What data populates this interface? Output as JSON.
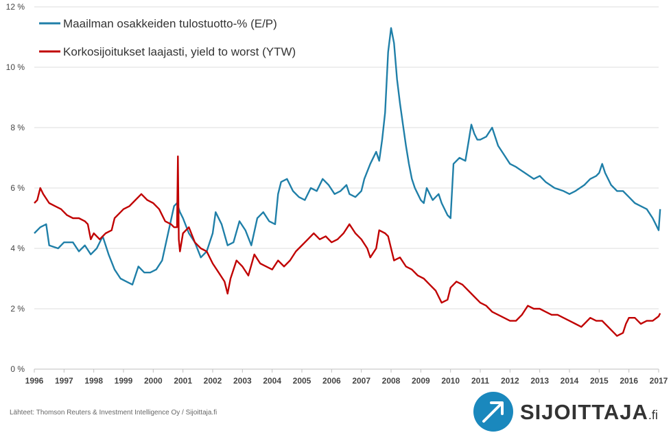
{
  "chart_data": {
    "type": "line",
    "y_ticks": [
      "0 %",
      "2 %",
      "4 %",
      "6 %",
      "8 %",
      "10 %",
      "12 %"
    ],
    "ylim": [
      0,
      12
    ],
    "x_ticks": [
      "1996",
      "1997",
      "1998",
      "1999",
      "2000",
      "2001",
      "2002",
      "2003",
      "2004",
      "2005",
      "2006",
      "2007",
      "2008",
      "2009",
      "2010",
      "2011",
      "2012",
      "2013",
      "2014",
      "2015",
      "2016",
      "2017"
    ],
    "xlim": [
      1996,
      2017
    ],
    "grid": "horizontal",
    "legend_position": "top-left",
    "series": [
      {
        "name": "Maailman osakkeiden tulostuotto-% (E/P)",
        "color": "#1f7fa8",
        "points": [
          [
            1996.0,
            4.5
          ],
          [
            1996.2,
            4.7
          ],
          [
            1996.4,
            4.8
          ],
          [
            1996.5,
            4.1
          ],
          [
            1996.8,
            4.0
          ],
          [
            1997.0,
            4.2
          ],
          [
            1997.3,
            4.2
          ],
          [
            1997.5,
            3.9
          ],
          [
            1997.7,
            4.1
          ],
          [
            1997.9,
            3.8
          ],
          [
            1998.1,
            4.0
          ],
          [
            1998.3,
            4.4
          ],
          [
            1998.5,
            3.8
          ],
          [
            1998.7,
            3.3
          ],
          [
            1998.9,
            3.0
          ],
          [
            1999.1,
            2.9
          ],
          [
            1999.3,
            2.8
          ],
          [
            1999.5,
            3.4
          ],
          [
            1999.7,
            3.2
          ],
          [
            1999.9,
            3.2
          ],
          [
            2000.1,
            3.3
          ],
          [
            2000.3,
            3.6
          ],
          [
            2000.5,
            4.5
          ],
          [
            2000.7,
            5.4
          ],
          [
            2000.8,
            5.5
          ],
          [
            2000.9,
            5.2
          ],
          [
            2001.0,
            5.0
          ],
          [
            2001.2,
            4.5
          ],
          [
            2001.4,
            4.2
          ],
          [
            2001.6,
            3.7
          ],
          [
            2001.8,
            3.9
          ],
          [
            2002.0,
            4.5
          ],
          [
            2002.1,
            5.2
          ],
          [
            2002.3,
            4.8
          ],
          [
            2002.5,
            4.1
          ],
          [
            2002.7,
            4.2
          ],
          [
            2002.9,
            4.9
          ],
          [
            2003.1,
            4.6
          ],
          [
            2003.3,
            4.1
          ],
          [
            2003.5,
            5.0
          ],
          [
            2003.7,
            5.2
          ],
          [
            2003.9,
            4.9
          ],
          [
            2004.1,
            4.8
          ],
          [
            2004.2,
            5.8
          ],
          [
            2004.3,
            6.2
          ],
          [
            2004.5,
            6.3
          ],
          [
            2004.7,
            5.9
          ],
          [
            2004.9,
            5.7
          ],
          [
            2005.1,
            5.6
          ],
          [
            2005.3,
            6.0
          ],
          [
            2005.5,
            5.9
          ],
          [
            2005.7,
            6.3
          ],
          [
            2005.9,
            6.1
          ],
          [
            2006.1,
            5.8
          ],
          [
            2006.3,
            5.9
          ],
          [
            2006.5,
            6.1
          ],
          [
            2006.6,
            5.8
          ],
          [
            2006.8,
            5.7
          ],
          [
            2007.0,
            5.9
          ],
          [
            2007.1,
            6.3
          ],
          [
            2007.3,
            6.8
          ],
          [
            2007.5,
            7.2
          ],
          [
            2007.6,
            6.9
          ],
          [
            2007.7,
            7.6
          ],
          [
            2007.8,
            8.5
          ],
          [
            2007.9,
            10.5
          ],
          [
            2008.0,
            11.3
          ],
          [
            2008.1,
            10.8
          ],
          [
            2008.2,
            9.6
          ],
          [
            2008.3,
            8.8
          ],
          [
            2008.4,
            8.1
          ],
          [
            2008.5,
            7.4
          ],
          [
            2008.6,
            6.8
          ],
          [
            2008.7,
            6.3
          ],
          [
            2008.8,
            6.0
          ],
          [
            2008.9,
            5.8
          ],
          [
            2009.0,
            5.6
          ],
          [
            2009.1,
            5.5
          ],
          [
            2009.2,
            6.0
          ],
          [
            2009.3,
            5.8
          ],
          [
            2009.4,
            5.6
          ],
          [
            2009.5,
            5.7
          ],
          [
            2009.6,
            5.8
          ],
          [
            2009.7,
            5.5
          ],
          [
            2009.9,
            5.1
          ],
          [
            2010.0,
            5.0
          ],
          [
            2010.1,
            6.8
          ],
          [
            2010.3,
            7.0
          ],
          [
            2010.5,
            6.9
          ],
          [
            2010.6,
            7.5
          ],
          [
            2010.7,
            8.1
          ],
          [
            2010.8,
            7.8
          ],
          [
            2010.9,
            7.6
          ],
          [
            2011.0,
            7.6
          ],
          [
            2011.2,
            7.7
          ],
          [
            2011.4,
            8.0
          ],
          [
            2011.6,
            7.4
          ],
          [
            2011.8,
            7.1
          ],
          [
            2012.0,
            6.8
          ],
          [
            2012.2,
            6.7
          ],
          [
            2012.5,
            6.5
          ],
          [
            2012.8,
            6.3
          ],
          [
            2013.0,
            6.4
          ],
          [
            2013.2,
            6.2
          ],
          [
            2013.5,
            6.0
          ],
          [
            2013.8,
            5.9
          ],
          [
            2014.0,
            5.8
          ],
          [
            2014.2,
            5.9
          ],
          [
            2014.5,
            6.1
          ],
          [
            2014.7,
            6.3
          ],
          [
            2014.9,
            6.4
          ],
          [
            2015.0,
            6.5
          ],
          [
            2015.1,
            6.8
          ],
          [
            2015.2,
            6.5
          ],
          [
            2015.4,
            6.1
          ],
          [
            2015.6,
            5.9
          ],
          [
            2015.8,
            5.9
          ],
          [
            2016.0,
            5.7
          ],
          [
            2016.2,
            5.5
          ],
          [
            2016.4,
            5.4
          ],
          [
            2016.6,
            5.3
          ],
          [
            2016.8,
            5.0
          ],
          [
            2016.9,
            4.8
          ],
          [
            2017.0,
            4.6
          ],
          [
            2017.05,
            5.3
          ]
        ]
      },
      {
        "name": "Korkosijoitukset laajasti, yield to worst (YTW)",
        "color": "#c00000",
        "points": [
          [
            1996.0,
            5.5
          ],
          [
            1996.1,
            5.6
          ],
          [
            1996.2,
            6.0
          ],
          [
            1996.3,
            5.8
          ],
          [
            1996.5,
            5.5
          ],
          [
            1996.7,
            5.4
          ],
          [
            1996.9,
            5.3
          ],
          [
            1997.1,
            5.1
          ],
          [
            1997.3,
            5.0
          ],
          [
            1997.5,
            5.0
          ],
          [
            1997.7,
            4.9
          ],
          [
            1997.8,
            4.8
          ],
          [
            1997.9,
            4.3
          ],
          [
            1998.0,
            4.5
          ],
          [
            1998.2,
            4.3
          ],
          [
            1998.4,
            4.5
          ],
          [
            1998.6,
            4.6
          ],
          [
            1998.7,
            5.0
          ],
          [
            1998.9,
            5.2
          ],
          [
            1999.0,
            5.3
          ],
          [
            1999.2,
            5.4
          ],
          [
            1999.4,
            5.6
          ],
          [
            1999.6,
            5.8
          ],
          [
            1999.8,
            5.6
          ],
          [
            2000.0,
            5.5
          ],
          [
            2000.2,
            5.3
          ],
          [
            2000.4,
            4.9
          ],
          [
            2000.6,
            4.8
          ],
          [
            2000.7,
            4.7
          ],
          [
            2000.8,
            4.7
          ],
          [
            2000.83,
            7.05
          ],
          [
            2000.86,
            4.3
          ],
          [
            2000.9,
            3.9
          ],
          [
            2001.0,
            4.5
          ],
          [
            2001.2,
            4.7
          ],
          [
            2001.4,
            4.2
          ],
          [
            2001.6,
            4.0
          ],
          [
            2001.8,
            3.9
          ],
          [
            2002.0,
            3.5
          ],
          [
            2002.2,
            3.2
          ],
          [
            2002.4,
            2.9
          ],
          [
            2002.5,
            2.5
          ],
          [
            2002.6,
            3.0
          ],
          [
            2002.8,
            3.6
          ],
          [
            2003.0,
            3.4
          ],
          [
            2003.2,
            3.1
          ],
          [
            2003.4,
            3.8
          ],
          [
            2003.6,
            3.5
          ],
          [
            2003.8,
            3.4
          ],
          [
            2004.0,
            3.3
          ],
          [
            2004.2,
            3.6
          ],
          [
            2004.4,
            3.4
          ],
          [
            2004.6,
            3.6
          ],
          [
            2004.8,
            3.9
          ],
          [
            2005.0,
            4.1
          ],
          [
            2005.2,
            4.3
          ],
          [
            2005.4,
            4.5
          ],
          [
            2005.6,
            4.3
          ],
          [
            2005.8,
            4.4
          ],
          [
            2006.0,
            4.2
          ],
          [
            2006.2,
            4.3
          ],
          [
            2006.4,
            4.5
          ],
          [
            2006.6,
            4.8
          ],
          [
            2006.8,
            4.5
          ],
          [
            2007.0,
            4.3
          ],
          [
            2007.2,
            4.0
          ],
          [
            2007.3,
            3.7
          ],
          [
            2007.5,
            4.0
          ],
          [
            2007.6,
            4.6
          ],
          [
            2007.8,
            4.5
          ],
          [
            2007.9,
            4.4
          ],
          [
            2008.0,
            4.0
          ],
          [
            2008.1,
            3.6
          ],
          [
            2008.3,
            3.7
          ],
          [
            2008.5,
            3.4
          ],
          [
            2008.7,
            3.3
          ],
          [
            2008.9,
            3.1
          ],
          [
            2009.1,
            3.0
          ],
          [
            2009.3,
            2.8
          ],
          [
            2009.5,
            2.6
          ],
          [
            2009.7,
            2.2
          ],
          [
            2009.9,
            2.3
          ],
          [
            2010.0,
            2.7
          ],
          [
            2010.2,
            2.9
          ],
          [
            2010.4,
            2.8
          ],
          [
            2010.6,
            2.6
          ],
          [
            2010.8,
            2.4
          ],
          [
            2011.0,
            2.2
          ],
          [
            2011.2,
            2.1
          ],
          [
            2011.4,
            1.9
          ],
          [
            2011.6,
            1.8
          ],
          [
            2011.8,
            1.7
          ],
          [
            2012.0,
            1.6
          ],
          [
            2012.2,
            1.6
          ],
          [
            2012.4,
            1.8
          ],
          [
            2012.6,
            2.1
          ],
          [
            2012.8,
            2.0
          ],
          [
            2013.0,
            2.0
          ],
          [
            2013.2,
            1.9
          ],
          [
            2013.4,
            1.8
          ],
          [
            2013.6,
            1.8
          ],
          [
            2013.8,
            1.7
          ],
          [
            2014.0,
            1.6
          ],
          [
            2014.2,
            1.5
          ],
          [
            2014.4,
            1.4
          ],
          [
            2014.5,
            1.5
          ],
          [
            2014.7,
            1.7
          ],
          [
            2014.9,
            1.6
          ],
          [
            2015.1,
            1.6
          ],
          [
            2015.3,
            1.4
          ],
          [
            2015.5,
            1.2
          ],
          [
            2015.6,
            1.1
          ],
          [
            2015.8,
            1.2
          ],
          [
            2015.9,
            1.5
          ],
          [
            2016.0,
            1.7
          ],
          [
            2016.2,
            1.7
          ],
          [
            2016.4,
            1.5
          ],
          [
            2016.6,
            1.6
          ],
          [
            2016.8,
            1.6
          ],
          [
            2017.0,
            1.75
          ],
          [
            2017.05,
            1.85
          ]
        ]
      }
    ]
  },
  "source_text": "Lähteet: Thomson Reuters & Investment Intelligence Oy / Sijoittaja.fi",
  "logo": {
    "name": "SIJOITTAJA",
    "suffix": ".fi",
    "icon": "arrow-up-right-icon",
    "color": "#1a88bd"
  }
}
